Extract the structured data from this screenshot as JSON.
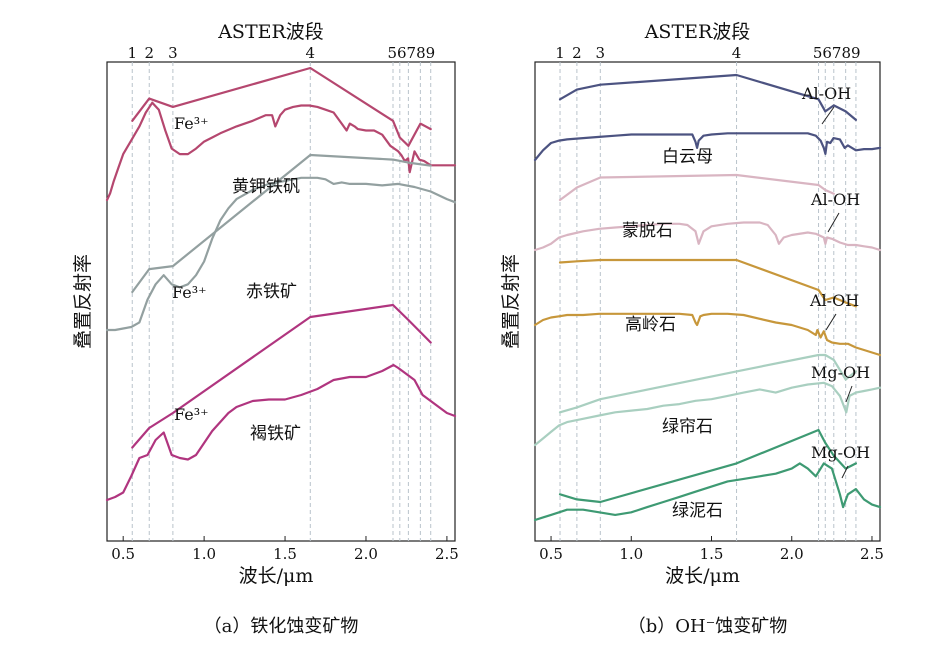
{
  "panels": [
    {
      "id": "a",
      "caption": "（a）铁化蚀变矿物",
      "top_title": "ASTER波段",
      "ylabel": "叠置反射率",
      "xlabel": "波长/μm",
      "band_labels": [
        "1",
        "2",
        "3",
        "4",
        "5",
        "6",
        "7",
        "8",
        "9"
      ],
      "band_label_display": [
        "1",
        "2",
        "3",
        "4",
        "56789"
      ],
      "annotations": [
        "Fe³⁺",
        "Fe³⁺",
        "Fe³⁺"
      ],
      "mineral_labels": [
        "黄钾铁矾",
        "赤铁矿",
        "褐铁矿"
      ]
    },
    {
      "id": "b",
      "caption": "（b）OH⁻蚀变矿物",
      "top_title": "ASTER波段",
      "ylabel": "叠置反射率",
      "xlabel": "波长/μm",
      "band_labels": [
        "1",
        "2",
        "3",
        "4",
        "5",
        "6",
        "7",
        "8",
        "9"
      ],
      "band_label_display": [
        "1",
        "2",
        "3",
        "4",
        "56789"
      ],
      "annotations": [
        "Al-OH",
        "Al-OH",
        "Al-OH",
        "Mg-OH",
        "Mg-OH"
      ],
      "mineral_labels": [
        "白云母",
        "蒙脱石",
        "高岭石",
        "绿帘石",
        "绿泥石"
      ]
    }
  ],
  "chart_data": [
    {
      "type": "line",
      "xlabel": "波长/μm",
      "ylabel": "叠置反射率",
      "xlim": [
        0.4,
        2.55
      ],
      "xticks": [
        "0.5",
        "1.0",
        "1.5",
        "2.0",
        "2.5"
      ],
      "xtick_values": [
        0.5,
        1.0,
        1.5,
        2.0,
        2.5
      ],
      "aster_band_centers": [
        0.556,
        0.661,
        0.807,
        1.656,
        2.167,
        2.209,
        2.262,
        2.336,
        2.4
      ],
      "colors": {
        "jarosite": "#b5476f",
        "hematite": "#93a0a0",
        "goethite": "#b0357f"
      },
      "series": [
        {
          "name": "黄钾铁矾",
          "color": "#b5476f",
          "kind": "spectrum",
          "x": [
            0.4,
            0.42,
            0.44,
            0.47,
            0.5,
            0.55,
            0.6,
            0.64,
            0.68,
            0.72,
            0.76,
            0.8,
            0.85,
            0.9,
            0.95,
            1.0,
            1.05,
            1.1,
            1.2,
            1.3,
            1.38,
            1.42,
            1.44,
            1.47,
            1.5,
            1.55,
            1.6,
            1.65,
            1.7,
            1.75,
            1.8,
            1.85,
            1.88,
            1.9,
            1.93,
            1.95,
            2.0,
            2.05,
            2.1,
            2.15,
            2.2,
            2.22,
            2.24,
            2.26,
            2.27,
            2.28,
            2.3,
            2.33,
            2.36,
            2.4,
            2.45,
            2.5,
            2.55
          ],
          "y": [
            0.05,
            0.1,
            0.18,
            0.28,
            0.38,
            0.48,
            0.58,
            0.68,
            0.75,
            0.7,
            0.55,
            0.42,
            0.38,
            0.38,
            0.42,
            0.47,
            0.5,
            0.53,
            0.58,
            0.62,
            0.66,
            0.66,
            0.58,
            0.66,
            0.7,
            0.72,
            0.73,
            0.73,
            0.72,
            0.7,
            0.68,
            0.6,
            0.55,
            0.6,
            0.58,
            0.56,
            0.55,
            0.55,
            0.52,
            0.44,
            0.4,
            0.37,
            0.33,
            0.35,
            0.25,
            0.3,
            0.4,
            0.34,
            0.33,
            0.3,
            0.3,
            0.3,
            0.3
          ]
        },
        {
          "name": "黄钾铁矾-convex-hull",
          "color": "#b5476f",
          "kind": "hull",
          "x": [
            0.556,
            0.661,
            0.807,
            1.656,
            2.167,
            2.209,
            2.262,
            2.336,
            2.4
          ],
          "y": [
            0.62,
            0.78,
            0.72,
            1.0,
            0.62,
            0.5,
            0.44,
            0.6,
            0.56
          ]
        },
        {
          "name": "赤铁矿",
          "color": "#93a0a0",
          "kind": "spectrum",
          "x": [
            0.4,
            0.45,
            0.5,
            0.55,
            0.6,
            0.65,
            0.7,
            0.75,
            0.8,
            0.85,
            0.9,
            0.95,
            1.0,
            1.05,
            1.1,
            1.15,
            1.2,
            1.3,
            1.4,
            1.5,
            1.6,
            1.65,
            1.7,
            1.75,
            1.8,
            1.85,
            1.9,
            2.0,
            2.1,
            2.2,
            2.3,
            2.4,
            2.5,
            2.55
          ],
          "y": [
            0.0,
            0.0,
            0.01,
            0.02,
            0.05,
            0.2,
            0.3,
            0.36,
            0.3,
            0.28,
            0.3,
            0.36,
            0.45,
            0.6,
            0.72,
            0.8,
            0.86,
            0.92,
            0.96,
            0.98,
            1.0,
            1.0,
            1.0,
            0.99,
            0.96,
            0.97,
            0.96,
            0.96,
            0.95,
            0.96,
            0.94,
            0.91,
            0.86,
            0.84
          ]
        },
        {
          "name": "赤铁矿-convex-hull",
          "color": "#93a0a0",
          "kind": "hull",
          "x": [
            0.556,
            0.661,
            0.807,
            1.656,
            2.167,
            2.262,
            2.4
          ],
          "y": [
            0.25,
            0.4,
            0.42,
            1.15,
            1.12,
            1.1,
            1.08
          ]
        },
        {
          "name": "褐铁矿",
          "color": "#b0357f",
          "kind": "spectrum",
          "x": [
            0.4,
            0.45,
            0.5,
            0.55,
            0.6,
            0.65,
            0.7,
            0.75,
            0.8,
            0.85,
            0.9,
            0.95,
            1.0,
            1.05,
            1.1,
            1.15,
            1.2,
            1.3,
            1.4,
            1.5,
            1.6,
            1.65,
            1.7,
            1.8,
            1.9,
            2.0,
            2.1,
            2.17,
            2.2,
            2.25,
            2.3,
            2.35,
            2.4,
            2.45,
            2.5,
            2.55
          ],
          "y": [
            0.0,
            0.02,
            0.05,
            0.16,
            0.28,
            0.3,
            0.4,
            0.45,
            0.3,
            0.28,
            0.27,
            0.3,
            0.38,
            0.46,
            0.52,
            0.58,
            0.62,
            0.66,
            0.67,
            0.67,
            0.7,
            0.72,
            0.74,
            0.8,
            0.82,
            0.82,
            0.86,
            0.9,
            0.88,
            0.84,
            0.8,
            0.7,
            0.66,
            0.62,
            0.58,
            0.56
          ]
        },
        {
          "name": "褐铁矿-convex-hull",
          "color": "#b0357f",
          "kind": "hull",
          "x": [
            0.556,
            0.661,
            0.807,
            1.656,
            2.167,
            2.262,
            2.4
          ],
          "y": [
            0.35,
            0.48,
            0.58,
            1.22,
            1.3,
            1.2,
            1.05
          ]
        }
      ]
    },
    {
      "type": "line",
      "xlabel": "波长/μm",
      "ylabel": "叠置反射率",
      "xlim": [
        0.4,
        2.55
      ],
      "xticks": [
        "0.5",
        "1.0",
        "1.5",
        "2.0",
        "2.5"
      ],
      "xtick_values": [
        0.5,
        1.0,
        1.5,
        2.0,
        2.5
      ],
      "aster_band_centers": [
        0.556,
        0.661,
        0.807,
        1.656,
        2.167,
        2.209,
        2.262,
        2.336,
        2.4
      ],
      "colors": {
        "muscovite": "#4c5381",
        "montmorillonite": "#d9b5c2",
        "kaolinite": "#c7973b",
        "epidote": "#a9cfc0",
        "chlorite": "#3e9a73"
      },
      "series": [
        {
          "name": "白云母",
          "color": "#4c5381",
          "kind": "spectrum",
          "x": [
            0.4,
            0.45,
            0.5,
            0.55,
            0.6,
            0.7,
            0.8,
            0.9,
            1.0,
            1.1,
            1.2,
            1.3,
            1.38,
            1.4,
            1.41,
            1.42,
            1.45,
            1.5,
            1.6,
            1.7,
            1.8,
            1.9,
            2.0,
            2.1,
            2.15,
            2.18,
            2.2,
            2.21,
            2.22,
            2.24,
            2.26,
            2.3,
            2.33,
            2.35,
            2.4,
            2.45,
            2.5,
            2.55
          ],
          "y": [
            0.0,
            0.08,
            0.14,
            0.16,
            0.17,
            0.18,
            0.19,
            0.2,
            0.21,
            0.21,
            0.21,
            0.21,
            0.21,
            0.15,
            0.1,
            0.16,
            0.2,
            0.21,
            0.22,
            0.22,
            0.22,
            0.22,
            0.22,
            0.22,
            0.2,
            0.16,
            0.1,
            0.05,
            0.15,
            0.14,
            0.18,
            0.17,
            0.1,
            0.12,
            0.08,
            0.09,
            0.09,
            0.1
          ]
        },
        {
          "name": "白云母-hull",
          "color": "#4c5381",
          "kind": "hull",
          "x": [
            0.556,
            0.661,
            0.807,
            1.656,
            2.167,
            2.209,
            2.262,
            2.336,
            2.4
          ],
          "y": [
            0.5,
            0.58,
            0.62,
            0.7,
            0.5,
            0.4,
            0.45,
            0.4,
            0.33
          ]
        },
        {
          "name": "蒙脱石",
          "color": "#d9b5c2",
          "kind": "spectrum",
          "x": [
            0.4,
            0.45,
            0.5,
            0.55,
            0.6,
            0.7,
            0.8,
            0.9,
            1.0,
            1.1,
            1.2,
            1.3,
            1.35,
            1.4,
            1.42,
            1.45,
            1.5,
            1.6,
            1.7,
            1.8,
            1.85,
            1.9,
            1.92,
            1.95,
            2.0,
            2.1,
            2.15,
            2.2,
            2.21,
            2.22,
            2.25,
            2.3,
            2.35,
            2.4,
            2.45,
            2.5,
            2.55
          ],
          "y": [
            0.0,
            0.02,
            0.05,
            0.1,
            0.12,
            0.15,
            0.17,
            0.18,
            0.19,
            0.2,
            0.21,
            0.21,
            0.2,
            0.15,
            0.05,
            0.15,
            0.19,
            0.21,
            0.22,
            0.22,
            0.2,
            0.12,
            0.05,
            0.1,
            0.12,
            0.14,
            0.13,
            0.1,
            0.05,
            0.1,
            0.09,
            0.06,
            0.04,
            0.04,
            0.03,
            0.02,
            0.0
          ]
        },
        {
          "name": "蒙脱石-hull",
          "color": "#d9b5c2",
          "kind": "hull",
          "x": [
            0.556,
            0.661,
            0.807,
            1.656,
            2.167,
            2.209,
            2.262
          ],
          "y": [
            0.4,
            0.5,
            0.58,
            0.6,
            0.52,
            0.48,
            0.45
          ]
        },
        {
          "name": "高岭石",
          "color": "#c7973b",
          "kind": "spectrum",
          "x": [
            0.4,
            0.45,
            0.5,
            0.55,
            0.6,
            0.7,
            0.8,
            0.9,
            1.0,
            1.1,
            1.2,
            1.3,
            1.38,
            1.4,
            1.41,
            1.43,
            1.45,
            1.5,
            1.6,
            1.7,
            1.8,
            1.9,
            2.0,
            2.1,
            2.15,
            2.16,
            2.18,
            2.2,
            2.22,
            2.25,
            2.3,
            2.35,
            2.4,
            2.45,
            2.5,
            2.55
          ],
          "y": [
            0.0,
            0.04,
            0.06,
            0.07,
            0.08,
            0.08,
            0.09,
            0.09,
            0.09,
            0.09,
            0.09,
            0.09,
            0.08,
            0.02,
            0.0,
            0.07,
            0.08,
            0.09,
            0.09,
            0.08,
            0.05,
            0.02,
            0.0,
            -0.04,
            -0.08,
            -0.04,
            -0.1,
            -0.05,
            -0.12,
            -0.14,
            -0.15,
            -0.15,
            -0.18,
            -0.2,
            -0.22,
            -0.24
          ]
        },
        {
          "name": "高岭石-hull",
          "color": "#c7973b",
          "kind": "hull",
          "x": [
            0.556,
            0.661,
            0.807,
            1.656,
            2.167,
            2.209,
            2.262,
            2.336,
            2.4
          ],
          "y": [
            0.5,
            0.51,
            0.52,
            0.52,
            0.28,
            0.2,
            0.22,
            0.18,
            0.15
          ]
        },
        {
          "name": "绿帘石",
          "color": "#a9cfc0",
          "kind": "spectrum",
          "x": [
            0.4,
            0.45,
            0.5,
            0.55,
            0.6,
            0.7,
            0.8,
            0.9,
            1.0,
            1.1,
            1.2,
            1.3,
            1.4,
            1.5,
            1.6,
            1.7,
            1.8,
            1.9,
            2.0,
            2.1,
            2.2,
            2.25,
            2.3,
            2.32,
            2.34,
            2.36,
            2.4,
            2.45,
            2.5,
            2.55
          ],
          "y": [
            0.0,
            0.04,
            0.08,
            0.12,
            0.14,
            0.16,
            0.18,
            0.2,
            0.21,
            0.22,
            0.24,
            0.25,
            0.27,
            0.28,
            0.3,
            0.32,
            0.34,
            0.32,
            0.35,
            0.37,
            0.38,
            0.36,
            0.3,
            0.25,
            0.2,
            0.3,
            0.32,
            0.33,
            0.34,
            0.35
          ]
        },
        {
          "name": "绿帘石-hull",
          "color": "#a9cfc0",
          "kind": "hull",
          "x": [
            0.556,
            0.661,
            0.807,
            1.656,
            2.167,
            2.209,
            2.262,
            2.336,
            2.4
          ],
          "y": [
            0.2,
            0.23,
            0.28,
            0.45,
            0.55,
            0.55,
            0.52,
            0.4,
            0.45
          ]
        },
        {
          "name": "绿泥石",
          "color": "#3e9a73",
          "kind": "spectrum",
          "x": [
            0.4,
            0.45,
            0.5,
            0.55,
            0.6,
            0.7,
            0.8,
            0.9,
            1.0,
            1.1,
            1.2,
            1.3,
            1.4,
            1.5,
            1.6,
            1.7,
            1.8,
            1.9,
            2.0,
            2.05,
            2.1,
            2.15,
            2.2,
            2.25,
            2.3,
            2.32,
            2.35,
            2.4,
            2.45,
            2.5,
            2.55
          ],
          "y": [
            0.0,
            0.01,
            0.02,
            0.03,
            0.04,
            0.04,
            0.03,
            0.02,
            0.03,
            0.05,
            0.07,
            0.09,
            0.11,
            0.13,
            0.15,
            0.16,
            0.17,
            0.18,
            0.2,
            0.22,
            0.2,
            0.17,
            0.22,
            0.2,
            0.1,
            0.05,
            0.1,
            0.12,
            0.08,
            0.06,
            0.05
          ]
        },
        {
          "name": "绿泥石-hull",
          "color": "#3e9a73",
          "kind": "hull",
          "x": [
            0.556,
            0.661,
            0.807,
            1.656,
            2.167,
            2.209,
            2.262,
            2.336,
            2.4
          ],
          "y": [
            0.1,
            0.08,
            0.07,
            0.22,
            0.35,
            0.3,
            0.25,
            0.2,
            0.22
          ]
        }
      ]
    }
  ]
}
